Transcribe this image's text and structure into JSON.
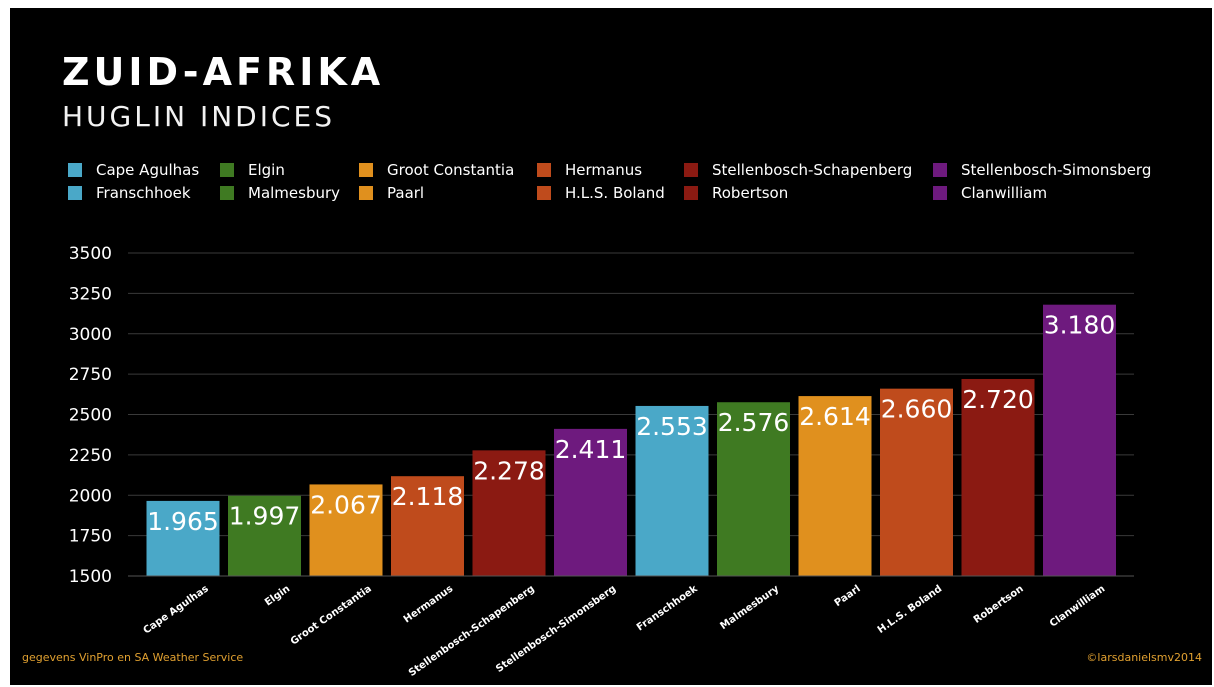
{
  "title": "ZUID-AFRIKA",
  "subtitle": "HUGLIN INDICES",
  "footer": {
    "source": "gegevens VinPro en SA Weather Service",
    "credit": "©larsdanielsmv2014"
  },
  "colors": {
    "background": "#000000",
    "gridline": "#3a3a3a",
    "axis_text": "#ffffff",
    "footer_text": "#e0a030"
  },
  "legend": [
    {
      "label": "Cape Agulhas",
      "color": "#4aa8c8"
    },
    {
      "label": "Franschhoek",
      "color": "#4aa8c8"
    },
    {
      "label": "Elgin",
      "color": "#3f7a22"
    },
    {
      "label": "Malmesbury",
      "color": "#3f7a22"
    },
    {
      "label": "Groot Constantia",
      "color": "#e0901e"
    },
    {
      "label": "Paarl",
      "color": "#e0901e"
    },
    {
      "label": "Hermanus",
      "color": "#bf4b1c"
    },
    {
      "label": "H.L.S. Boland",
      "color": "#bf4b1c"
    },
    {
      "label": "Stellenbosch-Schapenberg",
      "color": "#8b1a12"
    },
    {
      "label": "Robertson",
      "color": "#8b1a12"
    },
    {
      "label": "Stellenbosch-Simonsberg",
      "color": "#6e1a7e"
    },
    {
      "label": "Clanwilliam",
      "color": "#6e1a7e"
    }
  ],
  "chart_data": {
    "type": "bar",
    "title": "ZUID-AFRIKA",
    "subtitle": "HUGLIN INDICES",
    "categories": [
      "Cape Agulhas",
      "Elgin",
      "Groot Constantia",
      "Hermanus",
      "Stellenbosch-Schapenberg",
      "Stellenbosch-Simonsberg",
      "Franschhoek",
      "Malmesbury",
      "Paarl",
      "H.L.S. Boland",
      "Robertson",
      "Clanwilliam"
    ],
    "values": [
      1965,
      1997,
      2067,
      2118,
      2278,
      2411,
      2553,
      2576,
      2614,
      2660,
      2720,
      3180
    ],
    "data_labels": [
      "1.965",
      "1.997",
      "2.067",
      "2.118",
      "2.278",
      "2.411",
      "2.553",
      "2.576",
      "2.614",
      "2.660",
      "2.720",
      "3.180"
    ],
    "bar_colors": [
      "#4aa8c8",
      "#3f7a22",
      "#e0901e",
      "#bf4b1c",
      "#8b1a12",
      "#6e1a7e",
      "#4aa8c8",
      "#3f7a22",
      "#e0901e",
      "#bf4b1c",
      "#8b1a12",
      "#6e1a7e"
    ],
    "ylim": [
      1500,
      3500
    ],
    "yticks": [
      1500,
      1750,
      2000,
      2250,
      2500,
      2750,
      3000,
      3250,
      3500
    ],
    "grid": true,
    "legend_position": "top"
  }
}
